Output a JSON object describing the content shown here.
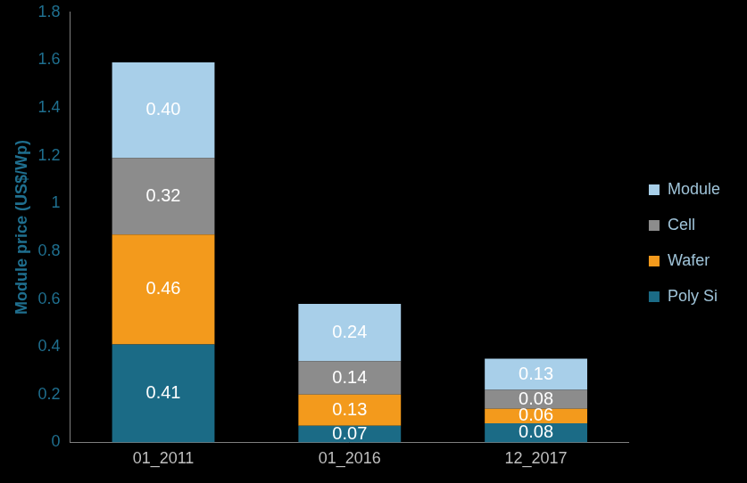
{
  "chart_data": {
    "type": "bar",
    "stacked": true,
    "data_labels": true,
    "y_label": "Module price (US$/Wp)",
    "categories": [
      "01_2011",
      "01_2016",
      "12_2017"
    ],
    "series": [
      {
        "name": "Poly Si",
        "color": "#1b6b86",
        "values": [
          0.41,
          0.07,
          0.08
        ],
        "value_labels": [
          "0.41",
          "0.07",
          "0.08"
        ]
      },
      {
        "name": "Wafer",
        "color": "#f39a1c",
        "values": [
          0.46,
          0.13,
          0.06
        ],
        "value_labels": [
          "0.46",
          "0.13",
          "0.06"
        ]
      },
      {
        "name": "Cell",
        "color": "#8c8c8c",
        "values": [
          0.32,
          0.14,
          0.08
        ],
        "value_labels": [
          "0.32",
          "0.14",
          "0.08"
        ]
      },
      {
        "name": "Module",
        "color": "#a8cfe9",
        "values": [
          0.4,
          0.24,
          0.13
        ],
        "value_labels": [
          "0.40",
          "0.24",
          "0.13"
        ]
      }
    ],
    "ylim": [
      0,
      1.8
    ],
    "yticks": [
      0,
      0.2,
      0.4,
      0.6,
      0.8,
      1,
      1.2,
      1.4,
      1.6,
      1.8
    ],
    "grid": false,
    "legend": "right"
  }
}
